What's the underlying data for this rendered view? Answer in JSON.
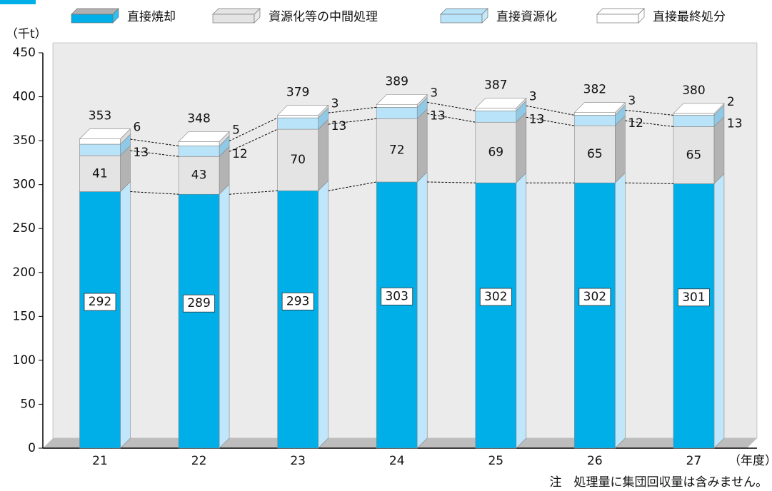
{
  "chart_data": {
    "type": "bar",
    "stacked": true,
    "ylabel": "（千t）",
    "xlabel": "（年度）",
    "note": "注　処理量に集団回収量は含みません。",
    "categories": [
      "21",
      "22",
      "23",
      "24",
      "25",
      "26",
      "27"
    ],
    "series": [
      {
        "name": "直接焼却",
        "color": "#00aee8",
        "values": [
          292,
          289,
          293,
          303,
          302,
          302,
          301
        ]
      },
      {
        "name": "資源化等の中間処理",
        "color": "#e4e4e4",
        "values": [
          41,
          43,
          70,
          72,
          69,
          65,
          65
        ]
      },
      {
        "name": "直接資源化",
        "color": "#b8e3f8",
        "values": [
          13,
          12,
          13,
          13,
          13,
          12,
          13
        ]
      },
      {
        "name": "直接最終処分",
        "color": "#ffffff",
        "values": [
          6,
          5,
          3,
          3,
          3,
          3,
          2
        ]
      }
    ],
    "totals": [
      353,
      348,
      379,
      389,
      387,
      382,
      380
    ],
    "ylim": [
      0,
      450
    ],
    "yticks": [
      0,
      50,
      100,
      150,
      200,
      250,
      300,
      350,
      400,
      450
    ]
  }
}
